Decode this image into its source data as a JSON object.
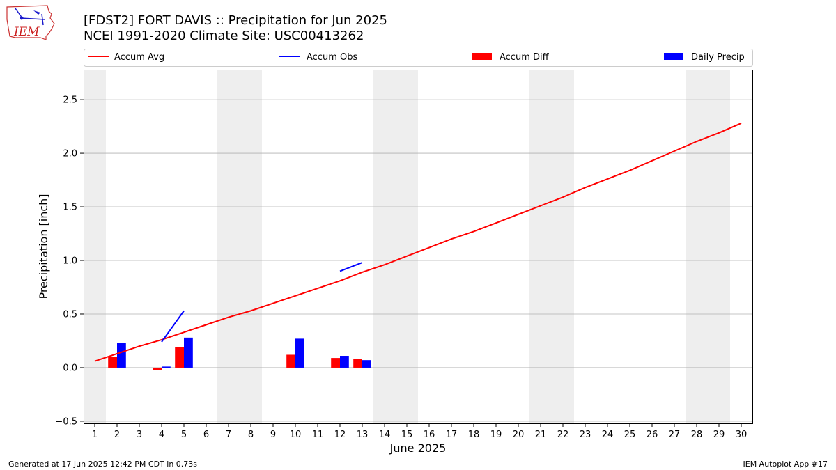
{
  "header": {
    "title_line1": "[FDST2] FORT DAVIS :: Precipitation for Jun 2025",
    "title_line2": "NCEI 1991-2020 Climate Site: USC00413262"
  },
  "logo": {
    "text": "IEM"
  },
  "footer": {
    "generated": "Generated at 17 Jun 2025 12:42 PM CDT in 0.73s",
    "app": "IEM Autoplot App #17"
  },
  "colors": {
    "accum_avg": "#ff0000",
    "accum_obs": "#0000ff",
    "accum_diff": "#ff0000",
    "daily_precip": "#0000ff",
    "weekend_shade": "#eeeeee",
    "grid": "#b0b0b0"
  },
  "chart_data": {
    "type": "bar",
    "xlabel": "June 2025",
    "ylabel": "Precipitation [inch]",
    "xlim": [
      0.5,
      30.5
    ],
    "ylim": [
      -0.52,
      2.78
    ],
    "grid": "horizontal",
    "legend_placement": "top (above plot)",
    "x_ticks": [
      1,
      2,
      3,
      4,
      5,
      6,
      7,
      8,
      9,
      10,
      11,
      12,
      13,
      14,
      15,
      16,
      17,
      18,
      19,
      20,
      21,
      22,
      23,
      24,
      25,
      26,
      27,
      28,
      29,
      30
    ],
    "y_ticks": [
      -0.5,
      0.0,
      0.5,
      1.0,
      1.5,
      2.0,
      2.5
    ],
    "y_tick_labels": [
      "−0.5",
      "0.0",
      "0.5",
      "1.0",
      "1.5",
      "2.0",
      "2.5"
    ],
    "legend": [
      "Accum Avg",
      "Accum Obs",
      "Accum Diff",
      "Daily Precip"
    ],
    "weekend_spans": [
      [
        0.5,
        1.5
      ],
      [
        6.5,
        8.5
      ],
      [
        13.5,
        15.5
      ],
      [
        20.5,
        22.5
      ],
      [
        27.5,
        29.5
      ]
    ],
    "series": [
      {
        "name": "Accum Avg",
        "kind": "line",
        "x": [
          1,
          2,
          3,
          4,
          5,
          6,
          7,
          8,
          9,
          10,
          11,
          12,
          13,
          14,
          15,
          16,
          17,
          18,
          19,
          20,
          21,
          22,
          23,
          24,
          25,
          26,
          27,
          28,
          29,
          30
        ],
        "values": [
          0.06,
          0.13,
          0.2,
          0.26,
          0.33,
          0.4,
          0.47,
          0.53,
          0.6,
          0.67,
          0.74,
          0.81,
          0.89,
          0.96,
          1.04,
          1.12,
          1.2,
          1.27,
          1.35,
          1.43,
          1.51,
          1.59,
          1.68,
          1.76,
          1.84,
          1.93,
          2.02,
          2.11,
          2.19,
          2.28
        ]
      },
      {
        "name": "Accum Obs",
        "kind": "line",
        "segments": [
          {
            "x": [
              4,
              5
            ],
            "values": [
              0.24,
              0.53
            ]
          },
          {
            "x": [
              12,
              13
            ],
            "values": [
              0.9,
              0.98
            ]
          }
        ]
      },
      {
        "name": "Accum Diff",
        "kind": "bar",
        "x": [
          2,
          4,
          5,
          10,
          12,
          13
        ],
        "values": [
          0.1,
          -0.02,
          0.19,
          0.12,
          0.09,
          0.08
        ]
      },
      {
        "name": "Daily Precip",
        "kind": "bar",
        "x": [
          2,
          4,
          5,
          10,
          12,
          13
        ],
        "values": [
          0.23,
          0.01,
          0.28,
          0.27,
          0.11,
          0.07
        ]
      }
    ]
  }
}
